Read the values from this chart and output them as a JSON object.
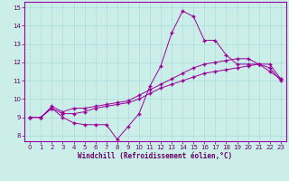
{
  "title": "",
  "xlabel": "Windchill (Refroidissement éolien,°C)",
  "ylabel": "",
  "bg_color": "#cceee8",
  "line_color": "#990099",
  "grid_color": "#aadddd",
  "axis_label_color": "#660066",
  "spine_color": "#9900aa",
  "xlim": [
    -0.5,
    23.5
  ],
  "ylim": [
    7.7,
    15.3
  ],
  "xticks": [
    0,
    1,
    2,
    3,
    4,
    5,
    6,
    7,
    8,
    9,
    10,
    11,
    12,
    13,
    14,
    15,
    16,
    17,
    18,
    19,
    20,
    21,
    22,
    23
  ],
  "yticks": [
    8,
    9,
    10,
    11,
    12,
    13,
    14,
    15
  ],
  "line1": [
    9.0,
    9.0,
    9.5,
    9.0,
    8.7,
    8.6,
    8.6,
    8.6,
    7.8,
    8.5,
    9.2,
    10.7,
    11.8,
    13.6,
    14.8,
    14.5,
    13.2,
    13.2,
    12.4,
    11.9,
    11.9,
    11.9,
    11.5,
    11.1
  ],
  "line2": [
    9.0,
    9.0,
    9.6,
    9.3,
    9.5,
    9.5,
    9.6,
    9.7,
    9.8,
    9.9,
    10.2,
    10.5,
    10.8,
    11.1,
    11.4,
    11.7,
    11.9,
    12.0,
    12.1,
    12.2,
    12.2,
    11.9,
    11.9,
    11.1
  ],
  "line3": [
    9.0,
    9.0,
    9.5,
    9.2,
    9.2,
    9.3,
    9.5,
    9.6,
    9.7,
    9.8,
    10.0,
    10.3,
    10.6,
    10.8,
    11.0,
    11.2,
    11.4,
    11.5,
    11.6,
    11.7,
    11.8,
    11.9,
    11.7,
    11.0
  ],
  "tick_fontsize": 5.0,
  "xlabel_fontsize": 5.5
}
